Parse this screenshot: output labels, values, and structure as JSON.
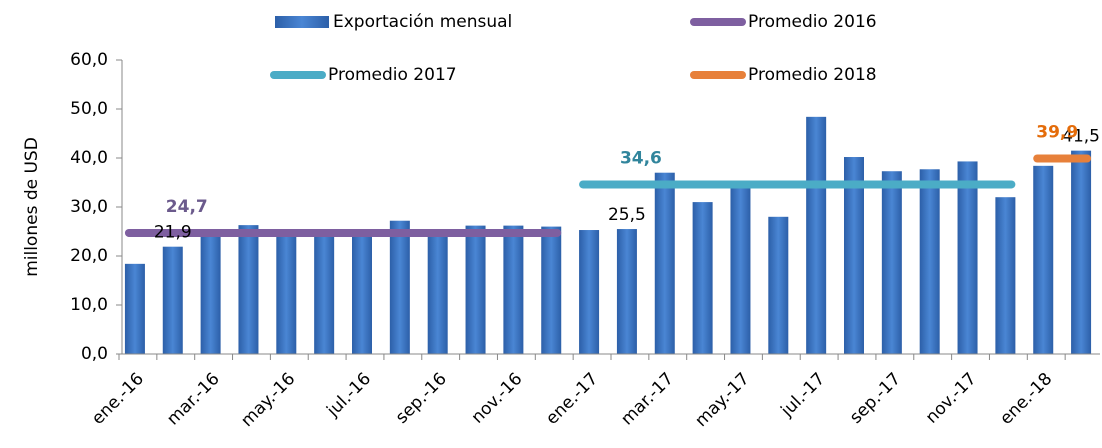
{
  "chart_data": {
    "type": "bar",
    "y_label": "millones de USD",
    "categories": [
      "ene.-16",
      null,
      "mar.-16",
      null,
      "may.-16",
      null,
      "jul.-16",
      null,
      "sep.-16",
      null,
      "nov.-16",
      null,
      "ene.-17",
      null,
      "mar.-17",
      null,
      "may.-17",
      null,
      "jul.-17",
      null,
      "sep.-17",
      null,
      "nov.-17",
      null,
      "ene.-18",
      null
    ],
    "series": [
      {
        "name": "Exportación mensual",
        "type": "bar",
        "color": "#3a75c4",
        "values": [
          18.4,
          21.9,
          25.0,
          26.3,
          25.5,
          24.8,
          25.0,
          27.2,
          25.0,
          26.2,
          26.2,
          26.0,
          25.3,
          25.5,
          37.0,
          31.0,
          34.5,
          28.0,
          48.4,
          40.2,
          37.3,
          37.7,
          39.3,
          32.0,
          38.4,
          41.5
        ],
        "value_labels": [
          null,
          "21,9",
          null,
          null,
          null,
          null,
          null,
          null,
          null,
          null,
          null,
          null,
          null,
          "25,5",
          null,
          null,
          null,
          null,
          null,
          null,
          null,
          null,
          null,
          null,
          null,
          "41,5"
        ]
      },
      {
        "name": "Promedio 2016",
        "type": "line",
        "color": "#7e5fa0",
        "label_color": "#6b5a8c",
        "values": [
          24.7,
          24.7,
          24.7,
          24.7,
          24.7,
          24.7,
          24.7,
          24.7,
          24.7,
          24.7,
          24.7,
          24.7,
          null,
          null,
          null,
          null,
          null,
          null,
          null,
          null,
          null,
          null,
          null,
          null,
          null,
          null
        ],
        "value_labels": [
          null,
          "24,7",
          null,
          null,
          null,
          null,
          null,
          null,
          null,
          null,
          null,
          null,
          null,
          null,
          null,
          null,
          null,
          null,
          null,
          null,
          null,
          null,
          null,
          null,
          null,
          null
        ]
      },
      {
        "name": "Promedio 2017",
        "type": "line",
        "color": "#4bacc6",
        "label_color": "#31859c",
        "values": [
          null,
          null,
          null,
          null,
          null,
          null,
          null,
          null,
          null,
          null,
          null,
          null,
          34.6,
          34.6,
          34.6,
          34.6,
          34.6,
          34.6,
          34.6,
          34.6,
          34.6,
          34.6,
          34.6,
          34.6,
          null,
          null
        ],
        "value_labels": [
          null,
          null,
          null,
          null,
          null,
          null,
          null,
          null,
          null,
          null,
          null,
          null,
          null,
          "34,6",
          null,
          null,
          null,
          null,
          null,
          null,
          null,
          null,
          null,
          null,
          null,
          null
        ]
      },
      {
        "name": "Promedio 2018",
        "type": "line",
        "color": "#e7803a",
        "label_color": "#e46c0a",
        "values": [
          null,
          null,
          null,
          null,
          null,
          null,
          null,
          null,
          null,
          null,
          null,
          null,
          null,
          null,
          null,
          null,
          null,
          null,
          null,
          null,
          null,
          null,
          null,
          null,
          39.9,
          39.9
        ],
        "value_labels": [
          null,
          null,
          null,
          null,
          null,
          null,
          null,
          null,
          null,
          null,
          null,
          null,
          null,
          null,
          null,
          null,
          null,
          null,
          null,
          null,
          null,
          null,
          null,
          null,
          "39,9",
          null
        ]
      }
    ],
    "ylim": [
      0,
      60
    ],
    "yticks": [
      {
        "value": 0,
        "label": "0,0"
      },
      {
        "value": 10,
        "label": "10,0"
      },
      {
        "value": 20,
        "label": "20,0"
      },
      {
        "value": 30,
        "label": "30,0"
      },
      {
        "value": 40,
        "label": "40,0"
      },
      {
        "value": 50,
        "label": "50,0"
      },
      {
        "value": 60,
        "label": "60,0"
      }
    ],
    "grid": false
  }
}
